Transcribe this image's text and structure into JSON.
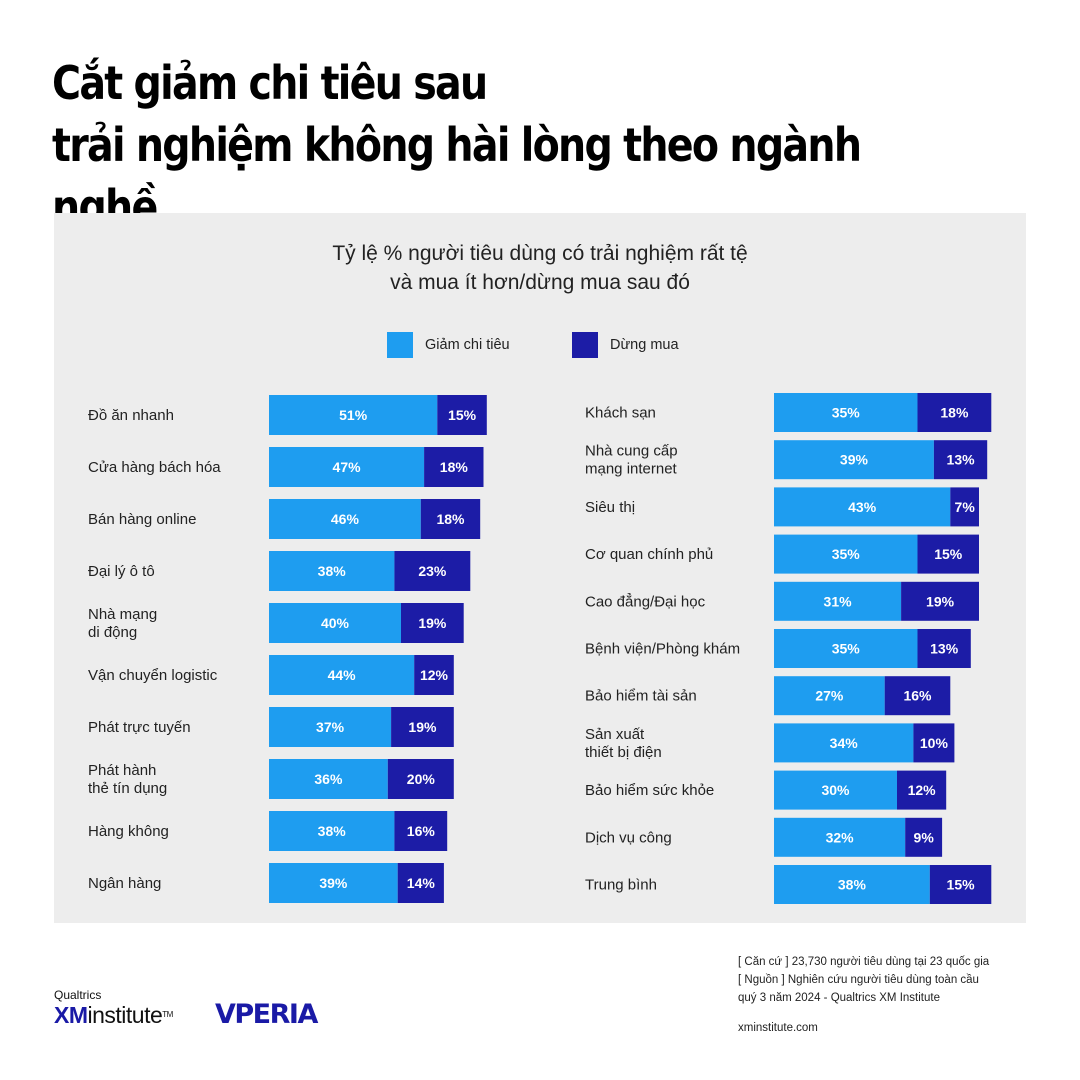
{
  "title_lines": [
    "Cắt giảm chi tiêu sau",
    "trải nghiệm không hài lòng theo ngành nghề"
  ],
  "colors": {
    "reduce": "#1e9df0",
    "stop": "#1c1ca6",
    "panel": "#ededed"
  },
  "chart_data": {
    "type": "bar",
    "orientation": "horizontal",
    "stacked": true,
    "subtitle": [
      "Tỷ lệ % người tiêu dùng có trải nghiệm rất tệ",
      "và mua ít hơn/dừng mua sau đó"
    ],
    "legend": [
      "Giảm chi tiêu",
      "Dừng mua"
    ],
    "value_suffix": "%",
    "panels": [
      {
        "categories": [
          [
            "Đồ ăn nhanh"
          ],
          [
            "Cửa hàng bách hóa"
          ],
          [
            "Bán hàng online"
          ],
          [
            "Đại lý ô tô"
          ],
          [
            "Nhà mạng",
            "di động"
          ],
          [
            "Vận chuyển  logistic"
          ],
          [
            "Phát trực tuyến"
          ],
          [
            "Phát hành",
            "thẻ tín dụng"
          ],
          [
            "Hàng không"
          ],
          [
            "Ngân hàng"
          ]
        ],
        "series": [
          {
            "name": "Giảm chi tiêu",
            "values": [
              51,
              47,
              46,
              38,
              40,
              44,
              37,
              36,
              38,
              39
            ]
          },
          {
            "name": "Dừng mua",
            "values": [
              15,
              18,
              18,
              23,
              19,
              12,
              19,
              20,
              16,
              14
            ]
          }
        ]
      },
      {
        "categories": [
          [
            "Khách sạn"
          ],
          [
            "Nhà cung cấp",
            "mạng internet"
          ],
          [
            "Siêu thị"
          ],
          [
            "Cơ quan chính phủ"
          ],
          [
            "Cao đẳng/Đại học"
          ],
          [
            "Bệnh viện/Phòng khám"
          ],
          [
            "Bảo hiểm tài sản"
          ],
          [
            "Sản xuất",
            "thiết bị điện"
          ],
          [
            "Bảo hiểm sức khỏe"
          ],
          [
            "Dịch vụ công"
          ],
          [
            "Trung bình"
          ]
        ],
        "series": [
          {
            "name": "Giảm chi tiêu",
            "values": [
              35,
              39,
              43,
              35,
              31,
              35,
              27,
              34,
              30,
              32,
              38
            ]
          },
          {
            "name": "Dừng mua",
            "values": [
              18,
              13,
              7,
              15,
              19,
              13,
              16,
              10,
              12,
              9,
              15
            ]
          }
        ]
      }
    ]
  },
  "footnote": {
    "basis": "[ Căn cứ ] 23,730 người tiêu dùng tại 23 quốc gia",
    "source_1": "[ Nguồn ] Nghiên cứu người tiêu dùng toàn cầu",
    "source_2": "quý 3 năm 2024 - Qualtrics XM Institute",
    "url": "xminstitute.com"
  },
  "logos": {
    "qualtrics": "Qualtrics",
    "xm": "XM",
    "institute": "institute",
    "tm": "TM",
    "vperia": "VPERIA"
  }
}
